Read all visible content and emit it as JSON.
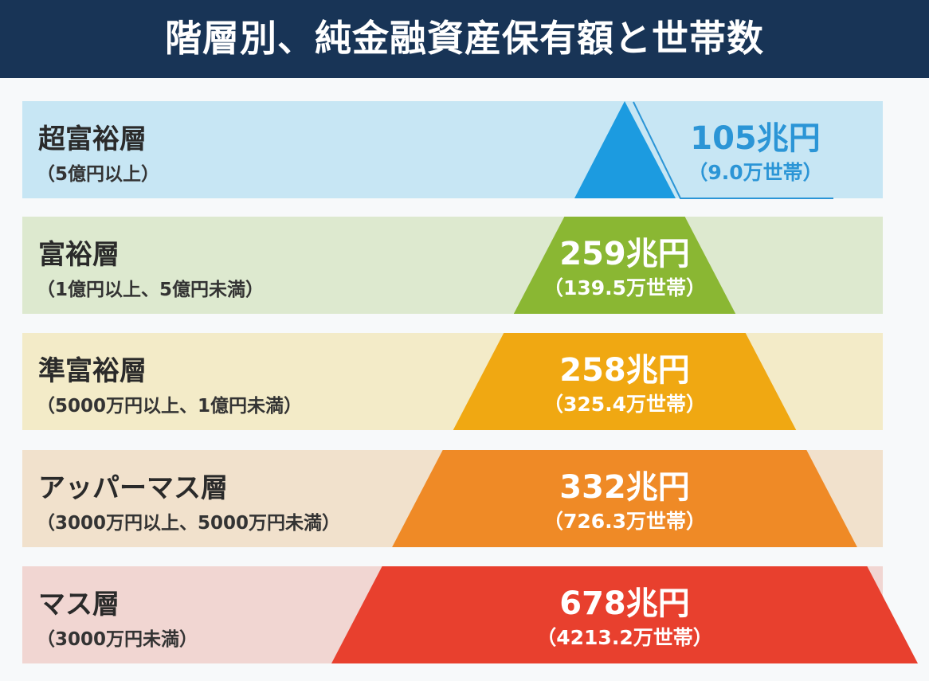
{
  "title": "階層別、純金融資産保有額と世帯数",
  "chart_data": {
    "type": "pyramid",
    "categories": [
      "超富裕層",
      "富裕層",
      "準富裕層",
      "アッパーマス層",
      "マス層"
    ],
    "category_ranges": [
      "（5億円以上）",
      "（1億円以上、5億円未満）",
      "（5000万円以上、1億円未満）",
      "（3000万円以上、5000万円未満）",
      "（3000万円未満）"
    ],
    "values": [
      105,
      259,
      258,
      332,
      678
    ],
    "value_labels": [
      "105兆円",
      "259兆円",
      "258兆円",
      "332兆円",
      "678兆円"
    ],
    "households": [
      9.0,
      139.5,
      325.4,
      726.3,
      4213.2
    ],
    "household_labels": [
      "（9.0万世帯）",
      "（139.5万世帯）",
      "（325.4万世帯）",
      "（726.3万世帯）",
      "（4213.2万世帯）"
    ],
    "colors": [
      "#1c9be0",
      "#8ab733",
      "#f0a812",
      "#ef8a26",
      "#e8402e"
    ],
    "band_colors": [
      "#c7e6f4",
      "#dde9cf",
      "#f3ebc8",
      "#f1e1cc",
      "#f1d6d2"
    ],
    "value_text_colors": [
      "#2b95d6",
      "#ffffff",
      "#ffffff",
      "#ffffff",
      "#ffffff"
    ]
  }
}
